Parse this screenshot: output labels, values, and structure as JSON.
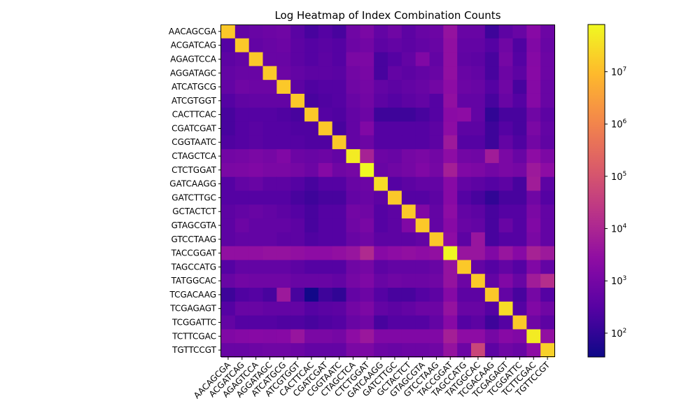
{
  "chart_data": {
    "type": "heatmap",
    "title": "Log Heatmap of Index Combination Counts",
    "xlabel": "",
    "ylabel": "",
    "color_scale": "log",
    "colormap": "plasma",
    "color_range": [
      35,
      80000000
    ],
    "colorbar_ticks": [
      {
        "value": 100,
        "label": "10",
        "exp": "2"
      },
      {
        "value": 1000,
        "label": "10",
        "exp": "3"
      },
      {
        "value": 10000,
        "label": "10",
        "exp": "4"
      },
      {
        "value": 100000,
        "label": "10",
        "exp": "5"
      },
      {
        "value": 1000000,
        "label": "10",
        "exp": "6"
      },
      {
        "value": 10000000,
        "label": "10",
        "exp": "7"
      }
    ],
    "categories": [
      "AACAGCGA",
      "ACGATCAG",
      "AGAGTCCA",
      "AGGATAGC",
      "ATCATGCG",
      "ATCGTGGT",
      "CACTTCAC",
      "CGATCGAT",
      "CGGTAATC",
      "CTAGCTCA",
      "CTCTGGAT",
      "GATCAAGG",
      "GATCTTGC",
      "GCTACTCT",
      "GTAGCGTA",
      "GTCCTAAG",
      "TACCGGAT",
      "TAGCCATG",
      "TATGGCAC",
      "TCGACAAG",
      "TCGAGAGT",
      "TCGGATTC",
      "TCTTCGAC",
      "TGTTCCGT"
    ],
    "values": [
      [
        15000000,
        500,
        600,
        700,
        800,
        350,
        200,
        300,
        200,
        800,
        1200,
        500,
        800,
        400,
        600,
        700,
        3500,
        600,
        600,
        150,
        400,
        600,
        2000,
        700
      ],
      [
        300,
        15000000,
        500,
        600,
        700,
        400,
        300,
        350,
        300,
        700,
        900,
        400,
        500,
        400,
        500,
        600,
        3000,
        500,
        500,
        300,
        800,
        250,
        1500,
        600
      ],
      [
        400,
        500,
        15000000,
        600,
        600,
        400,
        300,
        400,
        300,
        1200,
        1300,
        200,
        300,
        500,
        1500,
        500,
        3000,
        450,
        400,
        200,
        1000,
        300,
        1800,
        700
      ],
      [
        500,
        600,
        600,
        15000000,
        700,
        500,
        400,
        400,
        350,
        900,
        1100,
        200,
        500,
        400,
        500,
        600,
        3000,
        600,
        500,
        200,
        700,
        400,
        2000,
        700
      ],
      [
        500,
        800,
        700,
        700,
        15000000,
        400,
        250,
        300,
        300,
        800,
        1000,
        500,
        400,
        500,
        600,
        900,
        2500,
        700,
        600,
        300,
        800,
        200,
        1800,
        600
      ],
      [
        300,
        450,
        500,
        500,
        500,
        15000000,
        200,
        250,
        300,
        600,
        900,
        400,
        300,
        400,
        500,
        300,
        3000,
        500,
        500,
        200,
        600,
        300,
        1800,
        600
      ],
      [
        200,
        300,
        300,
        300,
        250,
        200,
        15000000,
        300,
        250,
        500,
        700,
        150,
        150,
        150,
        200,
        300,
        2200,
        2500,
        500,
        100,
        200,
        200,
        800,
        400
      ],
      [
        200,
        300,
        350,
        300,
        300,
        250,
        250,
        15000000,
        200,
        500,
        1500,
        300,
        300,
        300,
        300,
        400,
        2500,
        400,
        400,
        150,
        300,
        200,
        1200,
        500
      ],
      [
        250,
        300,
        350,
        300,
        300,
        300,
        250,
        250,
        15000000,
        500,
        700,
        300,
        300,
        300,
        300,
        400,
        5000,
        300,
        300,
        150,
        500,
        250,
        900,
        450
      ],
      [
        900,
        1000,
        1200,
        1000,
        1500,
        700,
        600,
        700,
        500,
        50000000,
        8000,
        700,
        600,
        1000,
        1200,
        900,
        2500,
        900,
        800,
        6000,
        1200,
        600,
        2500,
        1300
      ],
      [
        1200,
        1300,
        1500,
        1200,
        1200,
        1000,
        700,
        1800,
        800,
        1000,
        80000000,
        600,
        800,
        1000,
        1500,
        1000,
        7000,
        1500,
        1300,
        900,
        1200,
        1000,
        5000,
        2500
      ],
      [
        300,
        500,
        600,
        400,
        400,
        300,
        200,
        300,
        300,
        600,
        700,
        30000000,
        300,
        400,
        500,
        500,
        2000,
        500,
        400,
        300,
        400,
        200,
        6000,
        400
      ],
      [
        300,
        300,
        300,
        300,
        300,
        200,
        150,
        200,
        200,
        500,
        600,
        400,
        15000000,
        300,
        300,
        400,
        2000,
        300,
        200,
        100,
        200,
        200,
        800,
        300
      ],
      [
        400,
        500,
        600,
        500,
        400,
        300,
        200,
        300,
        300,
        900,
        800,
        300,
        400,
        15000000,
        1500,
        500,
        2500,
        500,
        400,
        200,
        300,
        300,
        1200,
        500
      ],
      [
        400,
        700,
        500,
        500,
        500,
        400,
        200,
        300,
        300,
        800,
        1100,
        300,
        400,
        1500,
        15000000,
        500,
        2000,
        600,
        500,
        200,
        600,
        300,
        1500,
        500
      ],
      [
        400,
        500,
        500,
        500,
        400,
        400,
        250,
        300,
        300,
        600,
        800,
        400,
        400,
        400,
        500,
        15000000,
        2500,
        400,
        4000,
        200,
        300,
        300,
        1200,
        500
      ],
      [
        3000,
        3000,
        3000,
        3500,
        3500,
        3000,
        2500,
        2500,
        3000,
        4000,
        12000,
        2000,
        2500,
        3000,
        2500,
        3000,
        80000000,
        4000,
        4000,
        1500,
        4000,
        2000,
        8000,
        5000
      ],
      [
        300,
        500,
        500,
        500,
        500,
        400,
        300,
        300,
        300,
        800,
        1000,
        400,
        500,
        500,
        500,
        600,
        3500,
        15000000,
        500,
        300,
        500,
        300,
        1500,
        500
      ],
      [
        600,
        900,
        800,
        800,
        800,
        600,
        600,
        600,
        500,
        1000,
        1400,
        600,
        800,
        700,
        700,
        800,
        3500,
        700,
        15000000,
        500,
        1500,
        600,
        6000,
        15000
      ],
      [
        150,
        250,
        300,
        200,
        5000,
        200,
        40,
        150,
        100,
        500,
        700,
        300,
        200,
        200,
        300,
        400,
        1800,
        400,
        400,
        15000000,
        500,
        200,
        1000,
        300
      ],
      [
        300,
        600,
        600,
        500,
        500,
        500,
        300,
        350,
        400,
        900,
        1300,
        500,
        400,
        500,
        700,
        700,
        3500,
        600,
        600,
        300,
        30000000,
        300,
        1500,
        800
      ],
      [
        500,
        300,
        300,
        300,
        250,
        250,
        200,
        250,
        300,
        600,
        800,
        200,
        300,
        300,
        300,
        500,
        2000,
        300,
        400,
        150,
        300,
        15000000,
        800,
        400
      ],
      [
        1500,
        1800,
        2000,
        1800,
        2000,
        4000,
        1200,
        1200,
        1000,
        2500,
        4500,
        1500,
        1500,
        1500,
        1500,
        1500,
        7000,
        2500,
        2500,
        1000,
        2000,
        1500,
        50000000,
        3000
      ],
      [
        600,
        600,
        700,
        800,
        800,
        700,
        500,
        500,
        500,
        1200,
        1300,
        700,
        600,
        700,
        700,
        800,
        3500,
        700,
        50000,
        400,
        800,
        600,
        2500,
        20000000
      ]
    ]
  }
}
